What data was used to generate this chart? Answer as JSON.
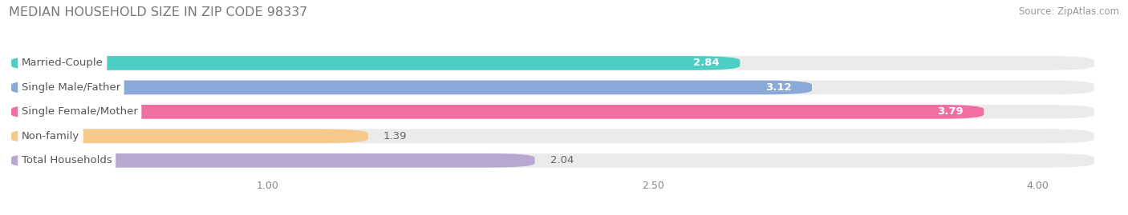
{
  "title": "MEDIAN HOUSEHOLD SIZE IN ZIP CODE 98337",
  "source": "Source: ZipAtlas.com",
  "categories": [
    "Married-Couple",
    "Single Male/Father",
    "Single Female/Mother",
    "Non-family",
    "Total Households"
  ],
  "values": [
    2.84,
    3.12,
    3.79,
    1.39,
    2.04
  ],
  "bar_colors": [
    "#4DCEC5",
    "#89A9D8",
    "#F06FA0",
    "#F5C98A",
    "#B8A8D0"
  ],
  "value_colors": [
    "white",
    "white",
    "white",
    "#888888",
    "#888888"
  ],
  "background_color": "#ffffff",
  "bar_bg_color": "#ebebeb",
  "label_bg_color": "#ffffff",
  "label_text_color": "#555555",
  "xlim": [
    0,
    4.22
  ],
  "xmin": 0,
  "xticks": [
    1.0,
    2.5,
    4.0
  ],
  "bar_height": 0.58,
  "label_fontsize": 9.5,
  "value_fontsize": 9.5,
  "title_fontsize": 11.5,
  "source_fontsize": 8.5,
  "title_color": "#777777",
  "source_color": "#999999"
}
